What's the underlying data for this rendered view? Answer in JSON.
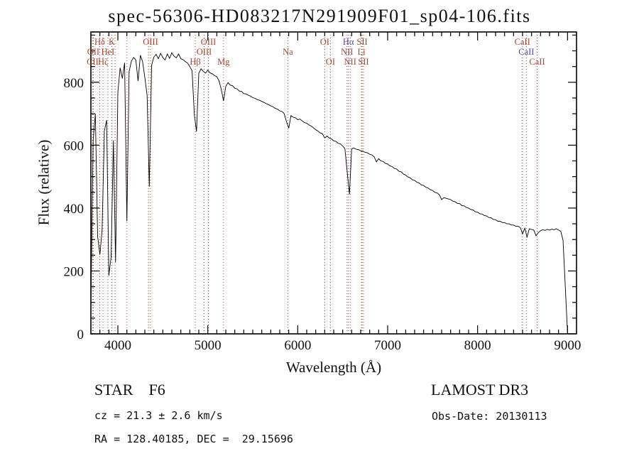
{
  "chart_data": {
    "type": "line",
    "title": "spec-56306-HD083217N291909F01_sp04-106.fits",
    "xlabel": "Wavelength (Å)",
    "ylabel": "Flux (relative)",
    "xlim": [
      3700,
      9100
    ],
    "ylim": [
      0,
      960
    ],
    "xticks": [
      4000,
      5000,
      6000,
      7000,
      8000,
      9000
    ],
    "yticks": [
      0,
      200,
      400,
      600,
      800
    ],
    "x_minor_step": 100,
    "y_minor_step": 50,
    "grid": false,
    "legend": "none",
    "x_start": 3700,
    "x_step": 25,
    "flux": [
      80,
      615,
      700,
      310,
      252,
      330,
      645,
      680,
      185,
      245,
      615,
      228,
      768,
      846,
      812,
      862,
      358,
      833,
      867,
      879,
      871,
      804,
      886,
      866,
      815,
      758,
      468,
      854,
      880,
      889,
      875,
      892,
      879,
      871,
      890,
      876,
      894,
      883,
      878,
      890,
      875,
      872,
      866,
      861,
      850,
      837,
      698,
      643,
      829,
      843,
      835,
      829,
      839,
      830,
      827,
      821,
      818,
      805,
      777,
      741,
      787,
      799,
      791,
      789,
      781,
      779,
      772,
      771,
      764,
      763,
      759,
      756,
      751,
      749,
      745,
      743,
      739,
      736,
      732,
      729,
      725,
      722,
      717,
      715,
      709,
      707,
      700,
      675,
      654,
      694,
      689,
      687,
      681,
      683,
      677,
      672,
      670,
      664,
      661,
      655,
      649,
      645,
      639,
      636,
      623,
      629,
      623,
      620,
      614,
      612,
      606,
      604,
      597,
      589,
      514,
      444,
      589,
      591,
      587,
      586,
      582,
      581,
      577,
      576,
      571,
      569,
      563,
      547,
      557,
      550,
      548,
      542,
      540,
      534,
      532,
      526,
      524,
      517,
      515,
      508,
      505,
      499,
      496,
      490,
      488,
      482,
      480,
      474,
      472,
      466,
      464,
      458,
      456,
      450,
      448,
      442,
      427,
      433,
      431,
      429,
      427,
      422,
      420,
      415,
      414,
      408,
      407,
      402,
      400,
      395,
      394,
      388,
      387,
      382,
      381,
      376,
      375,
      370,
      369,
      364,
      363,
      358,
      358,
      354,
      354,
      350,
      350,
      346,
      346,
      342,
      342,
      338,
      318,
      336,
      308,
      334,
      332,
      330,
      312,
      322,
      328,
      331,
      329,
      332,
      330,
      333,
      331,
      334,
      330,
      326,
      298,
      150,
      5
    ],
    "spectral_lines": [
      {
        "label": "Hδ",
        "wavelength": 3798,
        "row": 0,
        "color": "red"
      },
      {
        "label": "K",
        "wavelength": 3933,
        "row": 0,
        "color": "red"
      },
      {
        "label": "OIII",
        "wavelength": 4363,
        "row": 0,
        "color": "red"
      },
      {
        "label": "OIII",
        "wavelength": 5007,
        "row": 0,
        "color": "red"
      },
      {
        "label": "OI",
        "wavelength": 6300,
        "row": 0,
        "color": "red"
      },
      {
        "label": "Hα",
        "wavelength": 6563,
        "row": 0,
        "color": "blue"
      },
      {
        "label": "SII",
        "wavelength": 6716,
        "row": 0,
        "color": "red"
      },
      {
        "label": "CaII",
        "wavelength": 8498,
        "row": 0,
        "color": "red"
      },
      {
        "label": "OII",
        "wavelength": 3727,
        "row": 1,
        "color": "red"
      },
      {
        "label": "HeI",
        "wavelength": 3889,
        "row": 1,
        "color": "red"
      },
      {
        "label": "OIII",
        "wavelength": 4959,
        "row": 1,
        "color": "red"
      },
      {
        "label": "Na",
        "wavelength": 5890,
        "row": 1,
        "color": "red"
      },
      {
        "label": "NII",
        "wavelength": 6548,
        "row": 1,
        "color": "red"
      },
      {
        "label": "Li",
        "wavelength": 6708,
        "row": 1,
        "color": "red"
      },
      {
        "label": "CaII",
        "wavelength": 8542,
        "row": 1,
        "color": "blue"
      },
      {
        "label": "CII",
        "wavelength": 3719,
        "row": 2,
        "color": "red"
      },
      {
        "label": "Hζ",
        "wavelength": 3835,
        "row": 2,
        "color": "red"
      },
      {
        "label": "Hβ",
        "wavelength": 4861,
        "row": 2,
        "color": "red"
      },
      {
        "label": "Mg",
        "wavelength": 5175,
        "row": 2,
        "color": "red"
      },
      {
        "label": "OI",
        "wavelength": 6363,
        "row": 2,
        "color": "red"
      },
      {
        "label": "NII",
        "wavelength": 6583,
        "row": 2,
        "color": "red"
      },
      {
        "label": "SII",
        "wavelength": 6731,
        "row": 2,
        "color": "red"
      },
      {
        "label": "CaII",
        "wavelength": 8662,
        "row": 2,
        "color": "red"
      },
      {
        "label": "",
        "wavelength": 3969,
        "row": 0,
        "color": "red"
      },
      {
        "label": "",
        "wavelength": 4101,
        "row": 0,
        "color": "red"
      },
      {
        "label": "",
        "wavelength": 4340,
        "row": 0,
        "color": "red"
      }
    ]
  },
  "annotations": {
    "class_label": "STAR    F6",
    "survey": "LAMOST DR3",
    "cz": "cz = 21.3 ± 2.6 km/s",
    "obs_date": "Obs-Date: 20130113",
    "coords": "RA = 128.40185, DEC =  29.15696"
  },
  "colors": {
    "spectrum": "#000000",
    "frame": "#000000",
    "marker_red": "#aa4433",
    "marker_blue": "#5544bb",
    "text": "#111111"
  }
}
